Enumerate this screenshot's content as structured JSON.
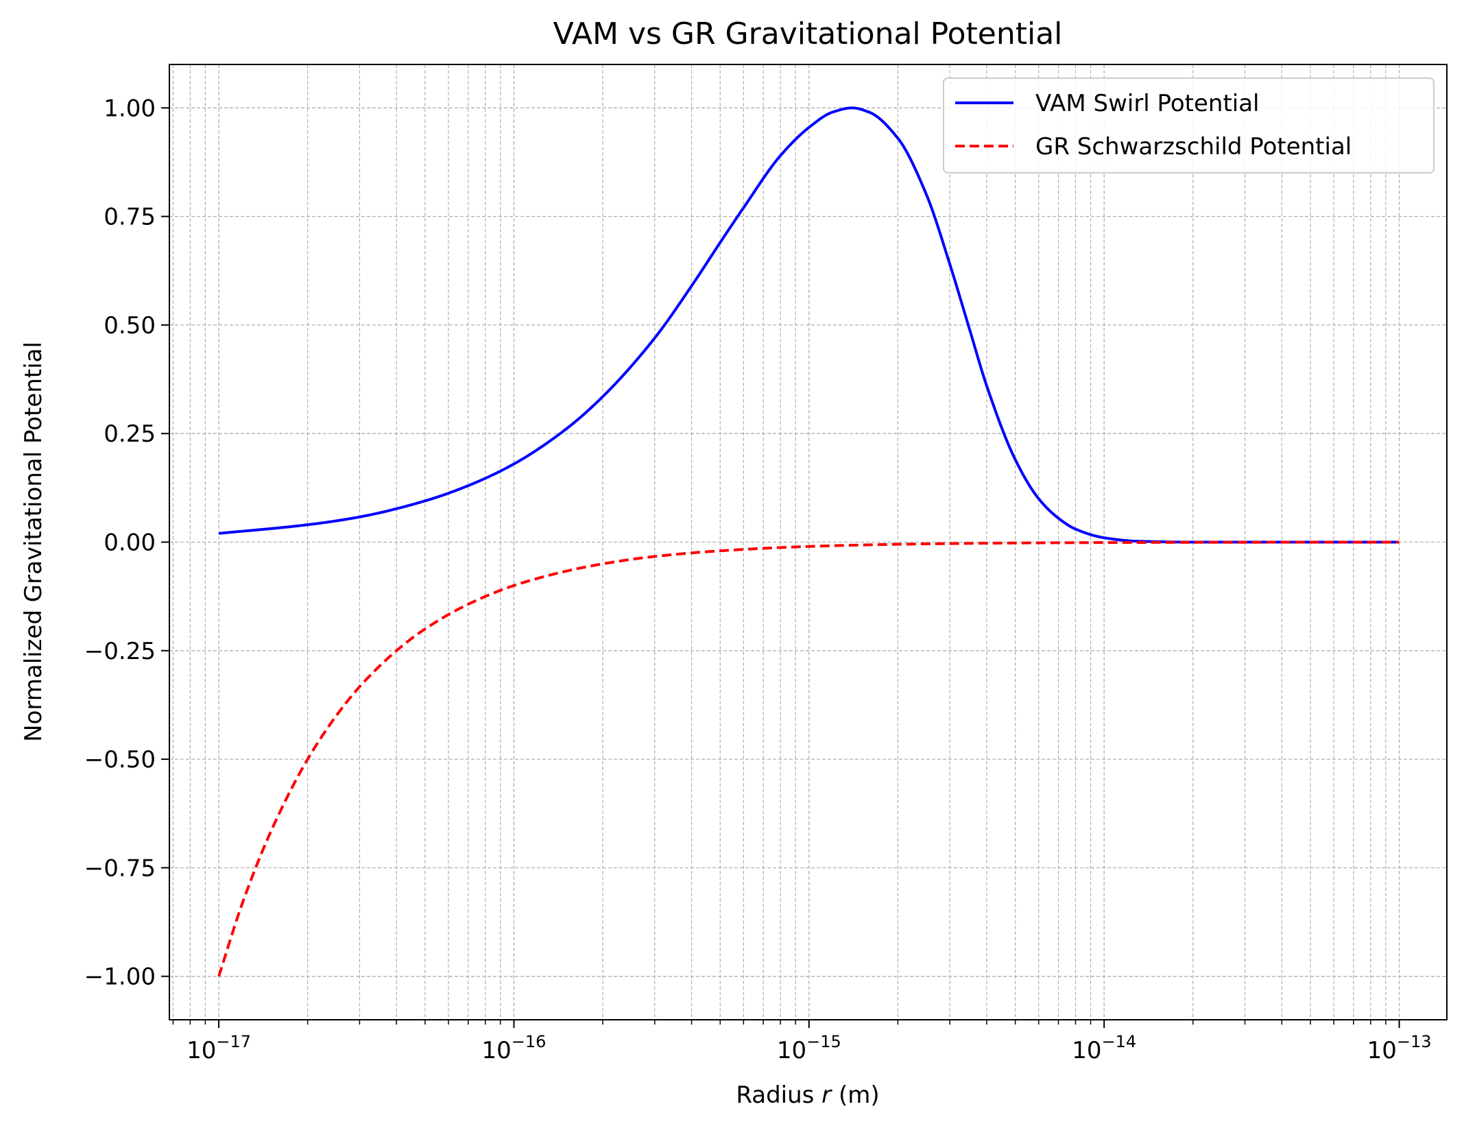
{
  "chart_data": {
    "type": "line",
    "title": "VAM vs GR Gravitational Potential",
    "xlabel_prefix": "Radius ",
    "xlabel_var": "r",
    "xlabel_suffix": " (m)",
    "ylabel": "Normalized Gravitational Potential",
    "xscale": "log",
    "xlim": [
      6.8e-18,
      1.45e-13
    ],
    "ylim": [
      -1.1,
      1.1
    ],
    "grid": true,
    "legend_position": "top-right",
    "x_ticks": [
      {
        "value": 1e-17,
        "base": "10",
        "exp": "−17"
      },
      {
        "value": 1e-16,
        "base": "10",
        "exp": "−16"
      },
      {
        "value": 1e-15,
        "base": "10",
        "exp": "−15"
      },
      {
        "value": 1e-14,
        "base": "10",
        "exp": "−14"
      },
      {
        "value": 1e-13,
        "base": "10",
        "exp": "−13"
      }
    ],
    "y_ticks": [
      {
        "value": 1.0,
        "label": "1.00"
      },
      {
        "value": 0.75,
        "label": "0.75"
      },
      {
        "value": 0.5,
        "label": "0.50"
      },
      {
        "value": 0.25,
        "label": "0.25"
      },
      {
        "value": 0.0,
        "label": "0.00"
      },
      {
        "value": -0.25,
        "label": "−0.25"
      },
      {
        "value": -0.5,
        "label": "−0.50"
      },
      {
        "value": -0.75,
        "label": "−0.75"
      },
      {
        "value": -1.0,
        "label": "−1.00"
      }
    ],
    "series": [
      {
        "name": "VAM Swirl Potential",
        "color": "#0000ff",
        "dash": "solid",
        "x": [
          1e-17,
          2e-17,
          3e-17,
          5e-17,
          7e-17,
          1e-16,
          1.5e-16,
          2e-16,
          3e-16,
          4e-16,
          5e-16,
          6e-16,
          8e-16,
          1e-15,
          1.2e-15,
          1.4e-15,
          1.6e-15,
          2e-15,
          2.5e-15,
          3e-15,
          3.5e-15,
          4e-15,
          5e-15,
          6e-15,
          7e-15,
          8e-15,
          1e-14,
          1.3e-14,
          2e-14,
          5e-14,
          1e-13
        ],
        "y": [
          0.02,
          0.04,
          0.058,
          0.095,
          0.13,
          0.18,
          0.26,
          0.335,
          0.47,
          0.59,
          0.69,
          0.77,
          0.89,
          0.955,
          0.99,
          1.0,
          0.99,
          0.93,
          0.8,
          0.64,
          0.49,
          0.36,
          0.19,
          0.1,
          0.055,
          0.03,
          0.01,
          0.002,
          0.0,
          0.0,
          0.0
        ]
      },
      {
        "name": "GR Schwarzschild Potential",
        "color": "#ff0000",
        "dash": "dashed",
        "x": [
          1e-17,
          1.2e-17,
          1.5e-17,
          2e-17,
          2.5e-17,
          3e-17,
          4e-17,
          5e-17,
          7e-17,
          1e-16,
          1.5e-16,
          2e-16,
          3e-16,
          5e-16,
          1e-15,
          2e-15,
          5e-15,
          1e-14,
          2e-14,
          5e-14,
          1e-13
        ],
        "y": [
          -1.0,
          -0.833,
          -0.667,
          -0.5,
          -0.4,
          -0.333,
          -0.25,
          -0.2,
          -0.143,
          -0.1,
          -0.067,
          -0.05,
          -0.033,
          -0.02,
          -0.01,
          -0.005,
          -0.002,
          -0.001,
          -0.0005,
          -0.0002,
          -0.0001
        ]
      }
    ]
  }
}
